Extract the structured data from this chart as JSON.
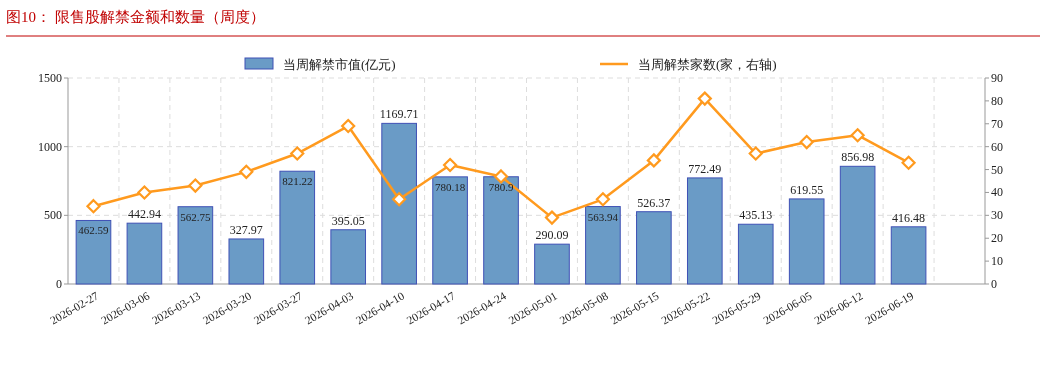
{
  "chart_data": {
    "type": "bar",
    "title": "图10：  限售股解禁金额和数量（周度）",
    "categories": [
      "2026-02-27",
      "2026-03-06",
      "2026-03-13",
      "2026-03-20",
      "2026-03-27",
      "2026-04-03",
      "2026-04-10",
      "2026-04-17",
      "2026-04-24",
      "2026-05-01",
      "2026-05-08",
      "2026-05-15",
      "2026-05-22",
      "2026-05-29",
      "2026-06-05",
      "2026-06-12",
      "2026-06-19",
      null
    ],
    "series": [
      {
        "name": "当周解禁市值(亿元)",
        "color": "#6a9bc6",
        "values": [
          462.59,
          442.94,
          562.75,
          327.97,
          821.22,
          395.05,
          1169.71,
          780.18,
          780.9,
          290.09,
          563.94,
          526.37,
          772.49,
          435.13,
          619.55,
          856.98,
          416.48,
          null
        ],
        "data_labels": true
      },
      {
        "name": "当周解禁家数(家，右轴)",
        "type": "line",
        "axis": "y2",
        "color": "#ff9a1e",
        "marker": "diamond",
        "line_style": "solid",
        "values": [
          34,
          40,
          43,
          49,
          57,
          69,
          37,
          52,
          47,
          29,
          37,
          54,
          81,
          57,
          62,
          65,
          53,
          null
        ]
      }
    ],
    "ylim": [
      0,
      1500
    ],
    "yticks": [
      0,
      500,
      1000,
      1500
    ],
    "y2lim": [
      0,
      90
    ],
    "y2ticks": [
      0,
      10,
      20,
      30,
      40,
      50,
      60,
      70,
      80,
      90
    ],
    "grid": true,
    "legend": "top"
  }
}
